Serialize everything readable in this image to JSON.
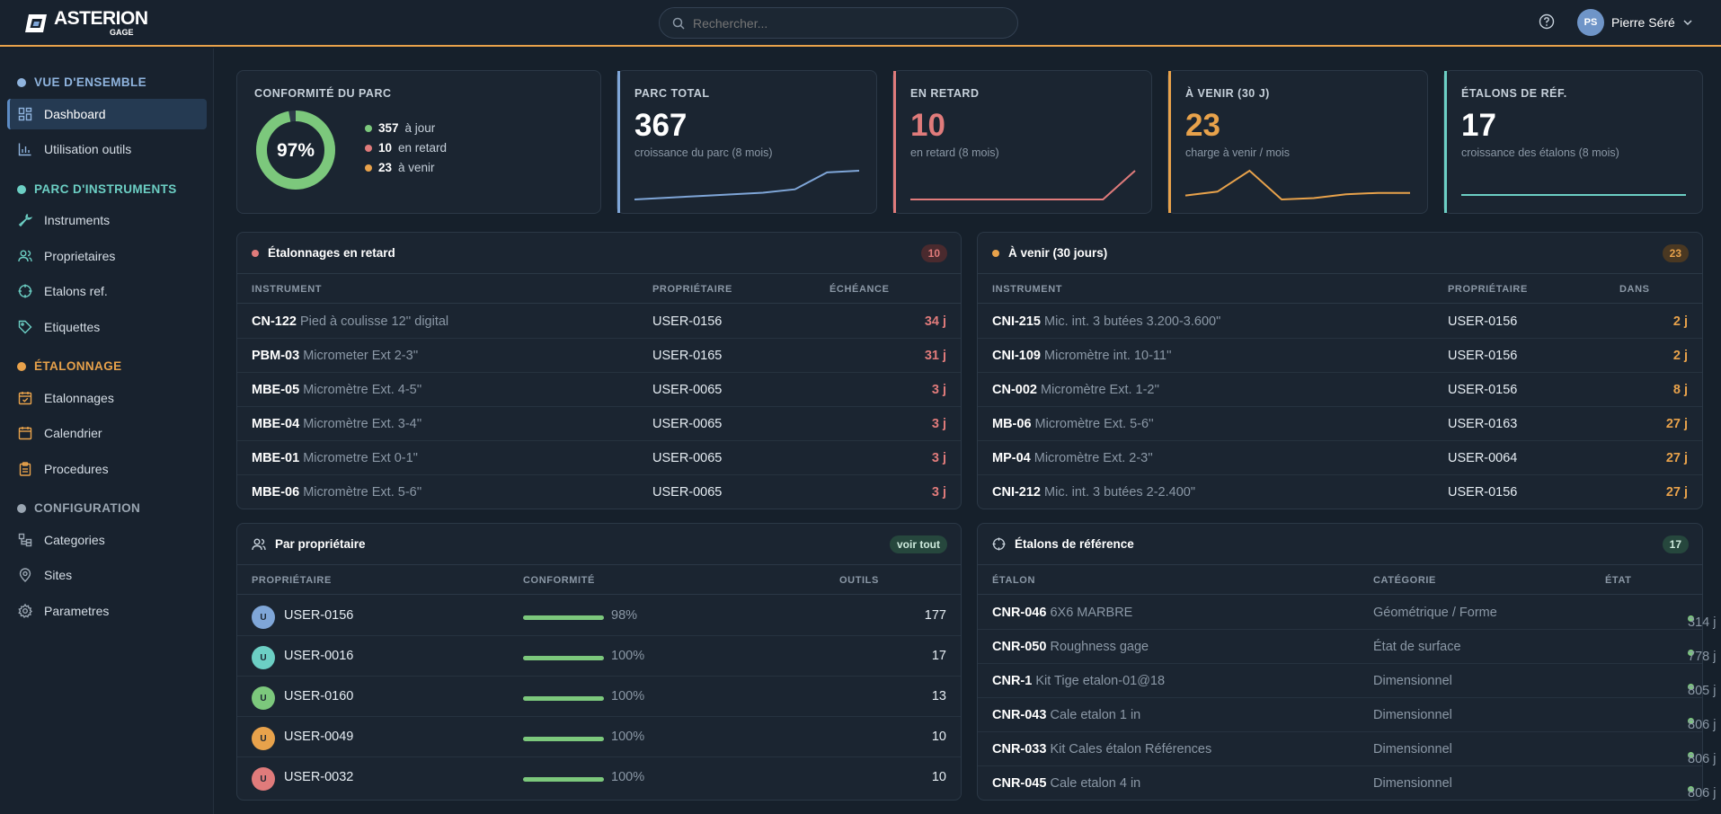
{
  "brand": {
    "name": "ASTERION",
    "sub": "GAGE"
  },
  "search": {
    "placeholder": "Rechercher..."
  },
  "user": {
    "initials": "PS",
    "name": "Pierre Séré"
  },
  "sidebar": {
    "sections": [
      {
        "label": "VUE D'ENSEMBLE",
        "color": "#8fb4de",
        "items": [
          {
            "label": "Dashboard",
            "icon": "grid-icon"
          },
          {
            "label": "Utilisation outils",
            "icon": "bar-chart-icon"
          }
        ]
      },
      {
        "label": "PARC D'INSTRUMENTS",
        "color": "#6ccfc4",
        "items": [
          {
            "label": "Instruments",
            "icon": "wrench-icon"
          },
          {
            "label": "Proprietaires",
            "icon": "users-icon"
          },
          {
            "label": "Etalons ref.",
            "icon": "crosshair-icon"
          },
          {
            "label": "Etiquettes",
            "icon": "tag-icon"
          }
        ]
      },
      {
        "label": "ÉTALONNAGE",
        "color": "#e8a24b",
        "items": [
          {
            "label": "Etalonnages",
            "icon": "calendar-check-icon"
          },
          {
            "label": "Calendrier",
            "icon": "calendar-icon"
          },
          {
            "label": "Procedures",
            "icon": "clipboard-icon"
          }
        ]
      },
      {
        "label": "CONFIGURATION",
        "color": "#9aa6b2",
        "items": [
          {
            "label": "Categories",
            "icon": "categories-icon"
          },
          {
            "label": "Sites",
            "icon": "pin-icon"
          },
          {
            "label": "Parametres",
            "icon": "gear-icon"
          }
        ]
      }
    ]
  },
  "kpis": {
    "conformity": {
      "label": "CONFORMITÉ DU PARC",
      "percent_text": "97%",
      "percent": 0.97,
      "a_jour": "357",
      "a_jour_label": "à jour",
      "en_retard": "10",
      "en_retard_label": "en retard",
      "a_venir": "23",
      "a_venir_label": "à venir"
    },
    "parc": {
      "label": "PARC TOTAL",
      "value": "367",
      "sub": "croissance du parc (8 mois)",
      "color": "#7fa6d8",
      "trend": [
        350,
        351,
        352,
        353,
        354,
        356,
        366,
        367
      ]
    },
    "retard": {
      "label": "EN RETARD",
      "value": "10",
      "sub": "en retard (8 mois)",
      "color": "#e07b7b",
      "trend": [
        0,
        0,
        0,
        0,
        0,
        0,
        0,
        10
      ]
    },
    "venir": {
      "label": "À VENIR (30 J)",
      "value": "23",
      "sub": "charge à venir / mois",
      "color": "#e8a24b",
      "trend": [
        5,
        8,
        24,
        2,
        3,
        6,
        7,
        7
      ]
    },
    "etalons": {
      "label": "ÉTALONS DE RÉF.",
      "value": "17",
      "sub": "croissance des étalons (8 mois)",
      "color": "#6ccfc4",
      "trend": [
        17,
        17,
        17,
        17,
        17,
        17,
        17,
        17
      ]
    }
  },
  "retard_panel": {
    "title": "Étalonnages en retard",
    "count": "10",
    "columns": [
      "INSTRUMENT",
      "PROPRIÉTAIRE",
      "ÉCHÉANCE"
    ],
    "rows": [
      {
        "code": "CN-122",
        "desc": "Pied à coulisse 12'' digital",
        "owner": "USER-0156",
        "value": "34 j"
      },
      {
        "code": "PBM-03",
        "desc": "Micrometer Ext 2-3''",
        "owner": "USER-0165",
        "value": "31 j"
      },
      {
        "code": "MBE-05",
        "desc": "Micromètre Ext. 4-5''",
        "owner": "USER-0065",
        "value": "3 j"
      },
      {
        "code": "MBE-04",
        "desc": "Micromètre Ext. 3-4''",
        "owner": "USER-0065",
        "value": "3 j"
      },
      {
        "code": "MBE-01",
        "desc": "Micrometre Ext 0-1\"",
        "owner": "USER-0065",
        "value": "3 j"
      },
      {
        "code": "MBE-06",
        "desc": "Micromètre Ext. 5-6''",
        "owner": "USER-0065",
        "value": "3 j"
      }
    ]
  },
  "venir_panel": {
    "title": "À venir (30 jours)",
    "count": "23",
    "columns": [
      "INSTRUMENT",
      "PROPRIÉTAIRE",
      "DANS"
    ],
    "rows": [
      {
        "code": "CNI-215",
        "desc": "Mic. int. 3 butées 3.200-3.600\"",
        "owner": "USER-0156",
        "value": "2 j"
      },
      {
        "code": "CNI-109",
        "desc": "Micromètre int. 10-11''",
        "owner": "USER-0156",
        "value": "2 j"
      },
      {
        "code": "CN-002",
        "desc": "Micromètre Ext. 1-2''",
        "owner": "USER-0156",
        "value": "8 j"
      },
      {
        "code": "MB-06",
        "desc": "Micromètre Ext. 5-6''",
        "owner": "USER-0163",
        "value": "27 j"
      },
      {
        "code": "MP-04",
        "desc": "Micromètre Ext. 2-3''",
        "owner": "USER-0064",
        "value": "27 j"
      },
      {
        "code": "CNI-212",
        "desc": "Mic. int. 3 butées 2-2.400\"",
        "owner": "USER-0156",
        "value": "27 j"
      }
    ]
  },
  "owner_panel": {
    "title": "Par propriétaire",
    "button": "voir tout",
    "columns": [
      "PROPRIÉTAIRE",
      "CONFORMITÉ",
      "OUTILS"
    ],
    "rows": [
      {
        "initial": "U",
        "color": "#7fa6d8",
        "name": "USER-0156",
        "conf": "98%",
        "conf_value": 98,
        "tools": "177"
      },
      {
        "initial": "U",
        "color": "#6ccfc4",
        "name": "USER-0016",
        "conf": "100%",
        "conf_value": 100,
        "tools": "17"
      },
      {
        "initial": "U",
        "color": "#7cc87c",
        "name": "USER-0160",
        "conf": "100%",
        "conf_value": 100,
        "tools": "13"
      },
      {
        "initial": "U",
        "color": "#e8a24b",
        "name": "USER-0049",
        "conf": "100%",
        "conf_value": 100,
        "tools": "10"
      },
      {
        "initial": "U",
        "color": "#e07b7b",
        "name": "USER-0032",
        "conf": "100%",
        "conf_value": 100,
        "tools": "10"
      }
    ]
  },
  "etalon_panel": {
    "title": "Étalons de référence",
    "count": "17",
    "columns": [
      "ÉTALON",
      "CATÉGORIE",
      "ÉTAT"
    ],
    "rows": [
      {
        "code": "CNR-046",
        "desc": "6X6 MARBRE",
        "cat": "Géométrique / Forme",
        "state": "314 j"
      },
      {
        "code": "CNR-050",
        "desc": "Roughness gage",
        "cat": "État de surface",
        "state": "778 j"
      },
      {
        "code": "CNR-1",
        "desc": "Kit Tige etalon-01@18",
        "cat": "Dimensionnel",
        "state": "805 j"
      },
      {
        "code": "CNR-043",
        "desc": "Cale etalon 1 in",
        "cat": "Dimensionnel",
        "state": "806 j"
      },
      {
        "code": "CNR-033",
        "desc": "Kit Cales étalon Références",
        "cat": "Dimensionnel",
        "state": "806 j"
      },
      {
        "code": "CNR-045",
        "desc": "Cale etalon 4 in",
        "cat": "Dimensionnel",
        "state": "806 j"
      }
    ]
  }
}
